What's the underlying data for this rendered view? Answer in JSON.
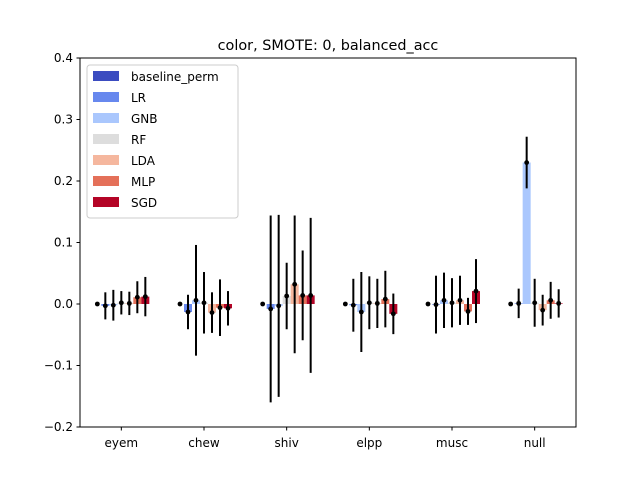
{
  "chart_data": {
    "type": "bar",
    "title": "color, SMOTE: 0, balanced_acc",
    "xlabel": "",
    "ylabel": "",
    "ylim": [
      -0.2,
      0.4
    ],
    "yticks": [
      -0.2,
      -0.1,
      0.0,
      0.1,
      0.2,
      0.3,
      0.4
    ],
    "ytick_labels": [
      "−0.2",
      "−0.1",
      "0.0",
      "0.1",
      "0.2",
      "0.3",
      "0.4"
    ],
    "categories": [
      "eyem",
      "chew",
      "shiv",
      "elpp",
      "musc",
      "null"
    ],
    "legend_position": "top-left",
    "series": [
      {
        "name": "baseline_perm",
        "color": "#3b4cc0",
        "values": [
          0.0,
          0.0,
          0.0,
          0.0,
          0.0,
          0.0
        ],
        "errors": [
          0.0,
          0.0,
          0.0,
          0.0,
          0.0,
          0.0
        ]
      },
      {
        "name": "LR",
        "color": "#6788ee",
        "values": [
          -0.003,
          -0.013,
          -0.008,
          -0.002,
          -0.001,
          0.001
        ],
        "errors": [
          0.022,
          0.028,
          0.152,
          0.043,
          0.047,
          0.024
        ]
      },
      {
        "name": "GNB",
        "color": "#aac7fd",
        "values": [
          -0.002,
          0.006,
          -0.003,
          -0.013,
          0.006,
          0.23
        ],
        "errors": [
          0.025,
          0.09,
          0.148,
          0.065,
          0.045,
          0.042
        ]
      },
      {
        "name": "RF",
        "color": "#dddddd",
        "values": [
          0.002,
          0.002,
          0.013,
          0.002,
          0.002,
          0.002
        ],
        "errors": [
          0.019,
          0.05,
          0.054,
          0.043,
          0.04,
          0.039
        ]
      },
      {
        "name": "LDA",
        "color": "#f5b79e",
        "values": [
          0.001,
          -0.014,
          0.032,
          0.001,
          0.006,
          -0.01
        ],
        "errors": [
          0.019,
          0.033,
          0.112,
          0.04,
          0.04,
          0.025
        ]
      },
      {
        "name": "MLP",
        "color": "#e47059",
        "values": [
          0.011,
          -0.006,
          0.014,
          0.008,
          -0.012,
          0.006
        ],
        "errors": [
          0.026,
          0.046,
          0.073,
          0.046,
          0.022,
          0.03
        ]
      },
      {
        "name": "SGD",
        "color": "#b40426",
        "values": [
          0.012,
          -0.007,
          0.014,
          -0.016,
          0.021,
          0.001
        ],
        "errors": [
          0.032,
          0.028,
          0.126,
          0.033,
          0.052,
          0.023
        ]
      }
    ]
  }
}
